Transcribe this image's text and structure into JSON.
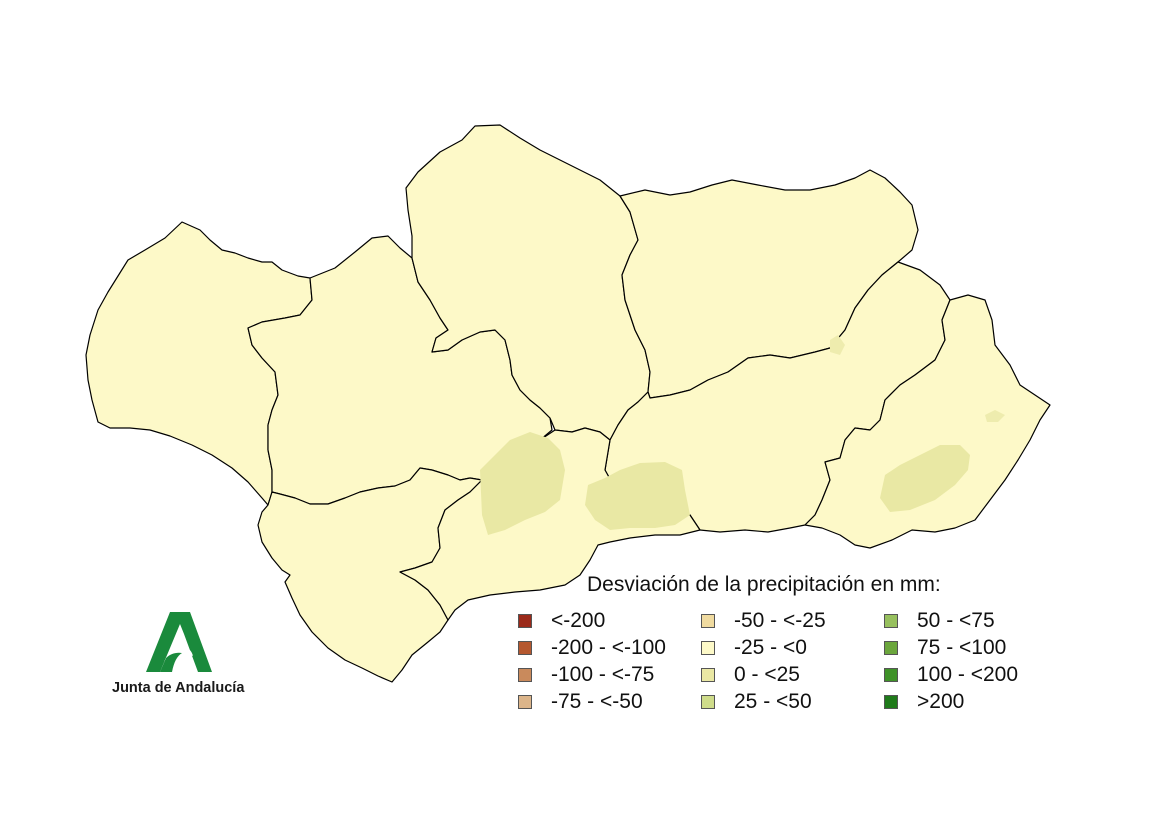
{
  "legend": {
    "title": "Desviación de la precipitación en mm:",
    "items": [
      {
        "label": "<-200",
        "color": "#9b2a1a"
      },
      {
        "label": "-200 - <-100",
        "color": "#b5582f"
      },
      {
        "label": "-100 - <-75",
        "color": "#c98a5c"
      },
      {
        "label": "-75 - <-50",
        "color": "#dcb58a"
      },
      {
        "label": "-50 - <-25",
        "color": "#f0dba0"
      },
      {
        "label": "-25 - <0",
        "color": "#fdf9c8"
      },
      {
        "label": "0 - <25",
        "color": "#eae8a4"
      },
      {
        "label": "25 - <50",
        "color": "#cfdc8a"
      },
      {
        "label": "50 - <75",
        "color": "#97c05e"
      },
      {
        "label": "75 - <100",
        "color": "#6ba63c"
      },
      {
        "label": "100 - <200",
        "color": "#3f9228"
      },
      {
        "label": ">200",
        "color": "#1f7a1a"
      }
    ]
  },
  "logo": {
    "text": "Junta de Andalucía",
    "color": "#1a8a3c"
  }
}
